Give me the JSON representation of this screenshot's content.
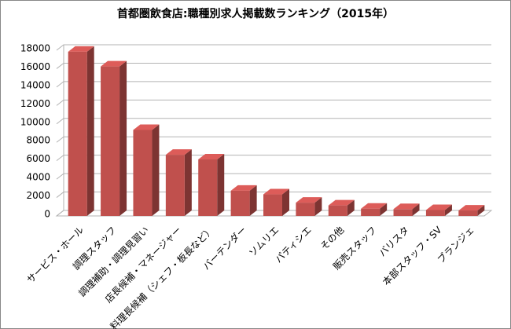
{
  "chart_data": {
    "type": "bar3d",
    "title": "首都圏飲食店:職種別求人掲載数ランキング（2015年）",
    "categories": [
      "サービス・ホール",
      "調理スタッフ",
      "調理補助・調理見習い",
      "店長候補・マネージャー",
      "料理長候補（シェフ・板長など）",
      "バーテンダー",
      "ソムリエ",
      "パティシエ",
      "その他",
      "販売スタッフ",
      "バリスタ",
      "本部スタッフ・SV",
      "ブランジェ"
    ],
    "values": [
      17500,
      15900,
      9000,
      6300,
      5800,
      2400,
      2000,
      1100,
      800,
      450,
      400,
      300,
      250
    ],
    "color": "#c0504d",
    "ylim": [
      0,
      18000
    ],
    "yticks": [
      0,
      2000,
      4000,
      6000,
      8000,
      10000,
      12000,
      14000,
      16000,
      18000
    ],
    "grid": true
  }
}
